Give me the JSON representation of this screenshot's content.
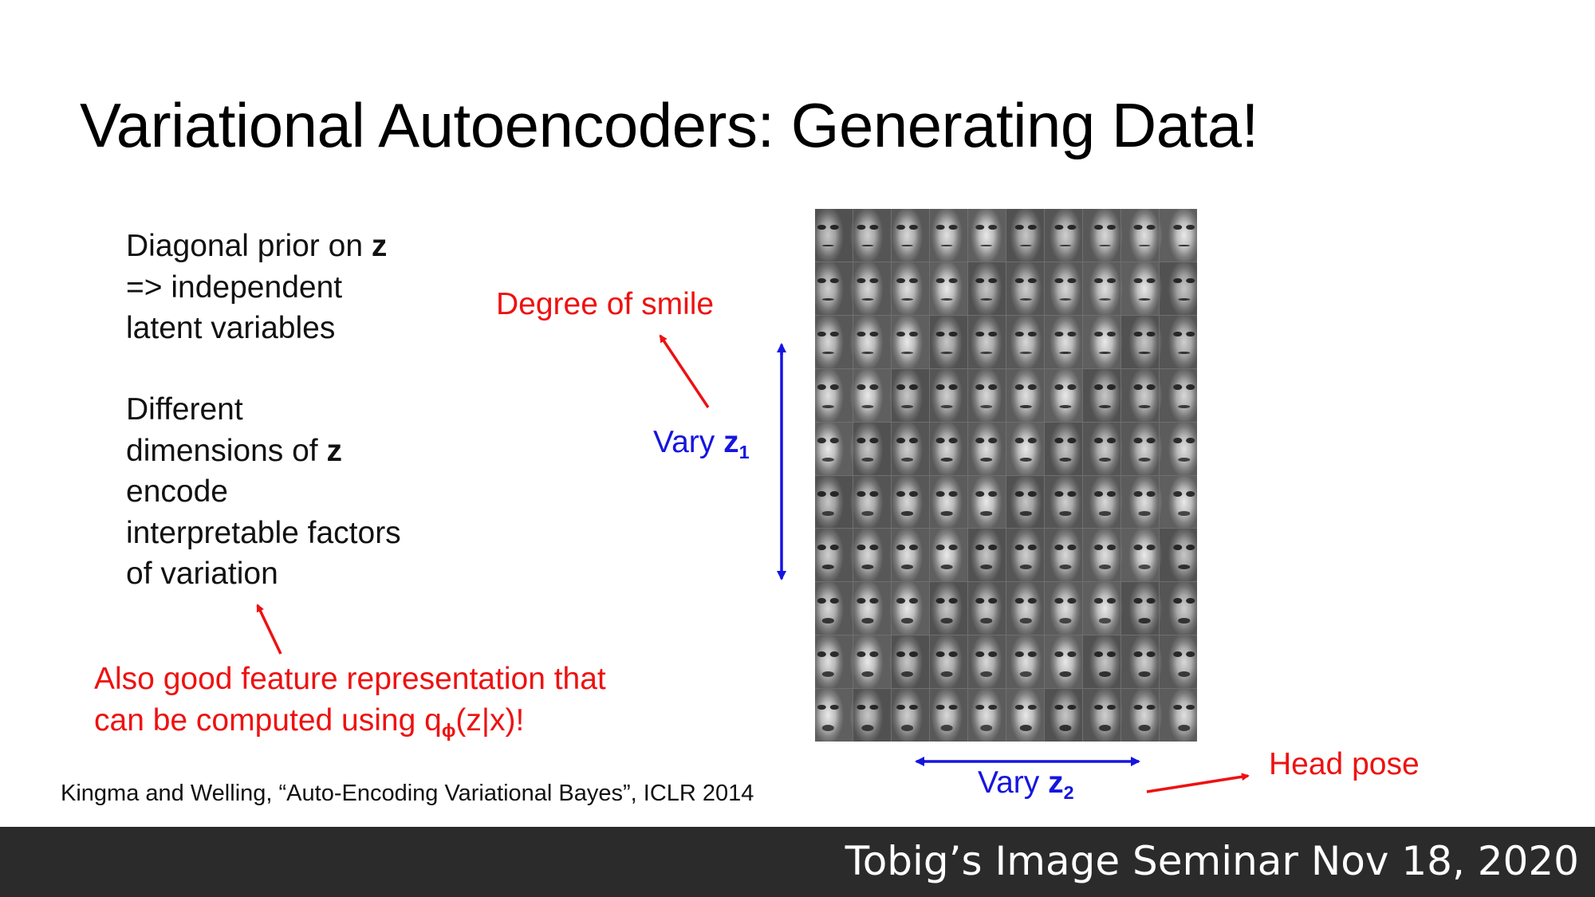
{
  "slide": {
    "title": "Variational Autoencoders: Generating Data!",
    "paragraph1": {
      "line1": "Diagonal prior on ",
      "line1_bold": "z",
      "line2": "=> independent",
      "line3": "latent variables"
    },
    "paragraph2": {
      "line1": "Different",
      "line2": "dimensions of ",
      "line2_bold": "z",
      "line3": "encode",
      "line4": "interpretable factors",
      "line5": "of variation"
    },
    "note": {
      "line1": "Also good feature representation that",
      "line2_pre": "can be computed using q",
      "line2_sub": "ϕ",
      "line2_post": "(z|x)!"
    },
    "labels": {
      "smile": "Degree of smile",
      "head_pose": "Head pose",
      "vary": "Vary ",
      "z": "z",
      "z1_sub": "1",
      "z2_sub": "2"
    },
    "citation": "Kingma and Welling, “Auto-Encoding Variational Bayes”, ICLR 2014",
    "face_grid": {
      "rows": 10,
      "cols": 10
    },
    "colors": {
      "red": "#ee1111",
      "blue": "#1515e0",
      "footer_bg": "#2b2b2b"
    }
  },
  "footer": {
    "text": "Tobig’s Image Seminar Nov 18, 2020"
  }
}
